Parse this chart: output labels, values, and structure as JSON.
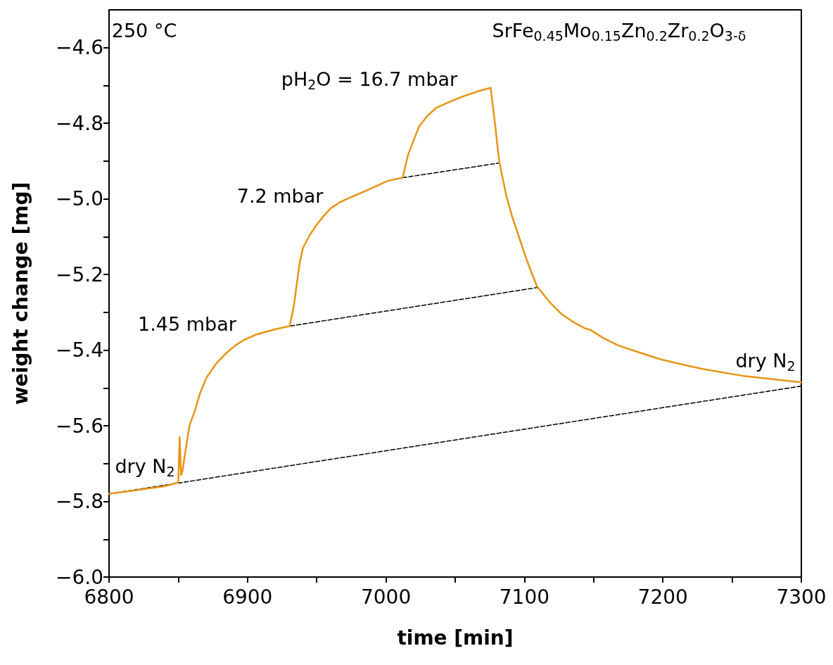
{
  "chart_data": {
    "type": "line",
    "xlabel": "time [min]",
    "ylabel": "weight change [mg]",
    "xlim": [
      6800,
      7300
    ],
    "ylim": [
      -6.0,
      -4.5
    ],
    "xticks": [
      6800,
      {
        "value": 6850,
        "label": null
      },
      6900,
      {
        "value": 6950,
        "label": null
      },
      7000,
      {
        "value": 7050,
        "label": null
      },
      7100,
      {
        "value": 7150,
        "label": null
      },
      7200,
      {
        "value": 7250,
        "label": null
      },
      7300
    ],
    "yticks": [
      {
        "value": -6.0,
        "label": "−6.0"
      },
      {
        "value": -5.9,
        "label": null
      },
      {
        "value": -5.8,
        "label": "−5.8"
      },
      {
        "value": -5.7,
        "label": null
      },
      {
        "value": -5.6,
        "label": "−5.6"
      },
      {
        "value": -5.5,
        "label": null
      },
      {
        "value": -5.4,
        "label": "−5.4"
      },
      {
        "value": -5.3,
        "label": null
      },
      {
        "value": -5.2,
        "label": "−5.2"
      },
      {
        "value": -5.1,
        "label": null
      },
      {
        "value": -5.0,
        "label": "−5.0"
      },
      {
        "value": -4.9,
        "label": null
      },
      {
        "value": -4.8,
        "label": "−4.8"
      },
      {
        "value": -4.7,
        "label": null
      },
      {
        "value": -4.6,
        "label": "−4.6"
      }
    ],
    "grid": false,
    "marker": "none",
    "series": [
      {
        "color": "#e69514",
        "line_style": "solid",
        "x": [
          6800,
          6820,
          6840,
          6850,
          6851,
          6852,
          6853,
          6858,
          6862,
          6865.5,
          6870,
          6877,
          6884,
          6891,
          6898,
          6906,
          6920,
          6930.5,
          6933.6,
          6937.5,
          6940,
          6945,
          6950,
          6955,
          6960,
          6966.6,
          6975,
          6984,
          6992,
          7001.5,
          7012,
          7016,
          7020,
          7024,
          7030,
          7036,
          7046,
          7057,
          7066,
          7075.6,
          7079,
          7080.5,
          7082,
          7087,
          7091,
          7095,
          7102,
          7109,
          7118,
          7127,
          7135,
          7143.5,
          7147.5,
          7157,
          7167.5,
          7182,
          7198,
          7213,
          7228,
          7243,
          7258,
          7280,
          7300
        ],
        "values": [
          -5.78,
          -5.77,
          -5.76,
          -5.75,
          -5.63,
          -5.73,
          -5.72,
          -5.6,
          -5.56,
          -5.516,
          -5.475,
          -5.437,
          -5.41,
          -5.388,
          -5.372,
          -5.359,
          -5.345,
          -5.336,
          -5.28,
          -5.173,
          -5.13,
          -5.095,
          -5.068,
          -5.045,
          -5.025,
          -5.009,
          -4.995,
          -4.981,
          -4.968,
          -4.952,
          -4.944,
          -4.883,
          -4.845,
          -4.808,
          -4.78,
          -4.76,
          -4.743,
          -4.727,
          -4.716,
          -4.706,
          -4.808,
          -4.86,
          -4.905,
          -4.993,
          -5.045,
          -5.089,
          -5.165,
          -5.231,
          -5.272,
          -5.305,
          -5.325,
          -5.342,
          -5.346,
          -5.368,
          -5.387,
          -5.405,
          -5.424,
          -5.437,
          -5.449,
          -5.459,
          -5.468,
          -5.477,
          -5.485
        ]
      },
      {
        "color": "#000000",
        "line_style": "dashed",
        "x": [
          6800,
          7300
        ],
        "values": [
          -5.78,
          -5.495
        ]
      },
      {
        "color": "#000000",
        "line_style": "dashed",
        "x": [
          6931,
          7110
        ],
        "values": [
          -5.336,
          -5.234
        ]
      },
      {
        "color": "#000000",
        "line_style": "dashed",
        "x": [
          7012,
          7082
        ],
        "values": [
          -4.944,
          -4.905
        ]
      }
    ],
    "annotations": [
      "250 °C",
      "SrFe$_{0.45}$Mo$_{0.15}$Zn$_{0.2}$Zr$_{0.2}$O$_{3-δ}$",
      "pH$_{2}$O = 16.7 mbar",
      "7.2 mbar",
      "1.45 mbar",
      "dry N$_{2}$",
      "dry N$_{2}$"
    ]
  }
}
